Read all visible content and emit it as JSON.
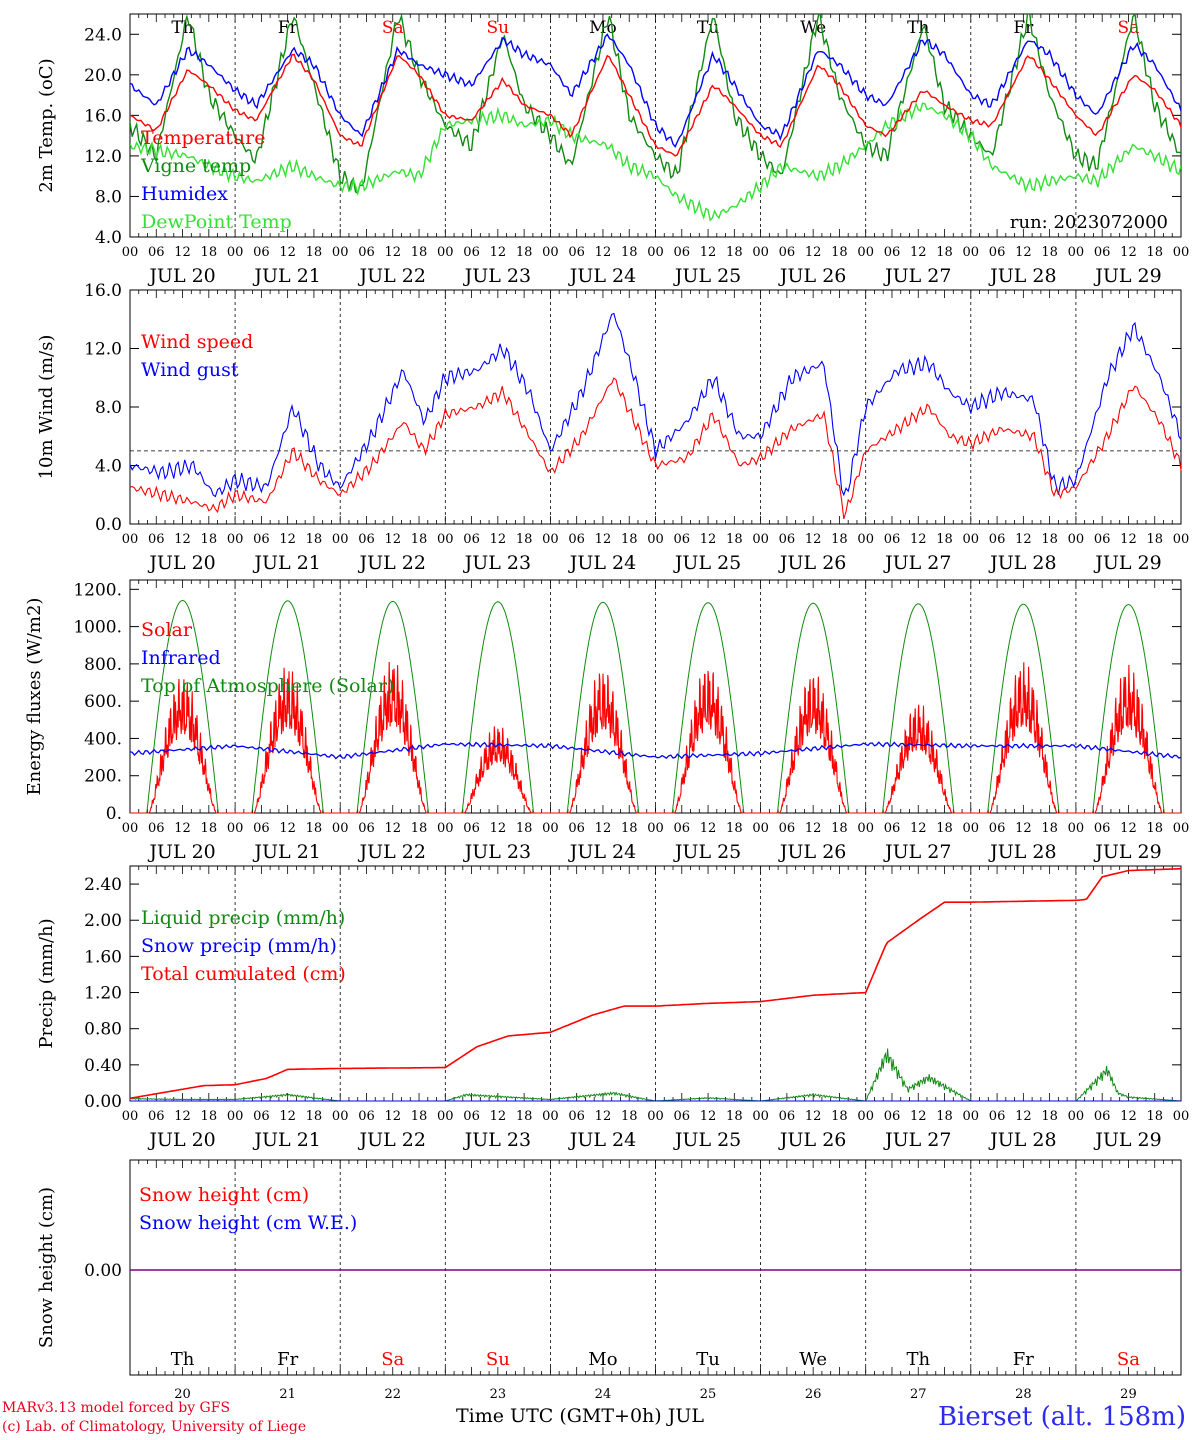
{
  "colors": {
    "red": "#ff0000",
    "green": "#118a11",
    "blue": "#0000ff",
    "lightgreen": "#33e033",
    "black": "#000000",
    "purple": "#7f007f"
  },
  "x_axis": {
    "hour_ticks": [
      "00",
      "06",
      "12",
      "18"
    ],
    "final_tick": "00",
    "dates": [
      "JUL 20",
      "JUL 21",
      "JUL 22",
      "JUL 23",
      "JUL 24",
      "JUL 25",
      "JUL 26",
      "JUL 27",
      "JUL 28",
      "JUL 29"
    ],
    "weekdays": [
      "Th",
      "Fr",
      "Sa",
      "Su",
      "Mo",
      "Tu",
      "We",
      "Th",
      "Fr",
      "Sa"
    ],
    "weekend_flags": [
      false,
      false,
      true,
      true,
      false,
      false,
      false,
      false,
      false,
      true
    ],
    "day_numbers": [
      "20",
      "21",
      "22",
      "23",
      "24",
      "25",
      "26",
      "27",
      "28",
      "29"
    ],
    "title": "Time UTC (GMT+0h) JUL"
  },
  "footer": {
    "model_credit": "MARv3.13 model forced by GFS",
    "lab_credit": "(c) Lab. of Climatology, University of Liege",
    "station": "Bierset (alt. 158m)"
  },
  "chart_data": [
    {
      "type": "line",
      "ylabel": "2m Temp. (oC)",
      "ylim": [
        4,
        26
      ],
      "yticks": [
        "4.0",
        "8.0",
        "12.0",
        "16.0",
        "20.0",
        "24.0"
      ],
      "annotation": "run: 2023072000",
      "x_units": "days since JUL 20 00 UTC",
      "series": [
        {
          "name": "Temperature",
          "color": "red",
          "x": [
            0,
            0.25,
            0.55,
            0.75,
            1,
            1.2,
            1.55,
            1.75,
            2,
            2.2,
            2.55,
            2.75,
            3,
            3.25,
            3.55,
            3.75,
            4,
            4.2,
            4.55,
            4.75,
            5,
            5.2,
            5.55,
            5.75,
            6,
            6.2,
            6.55,
            6.75,
            7,
            7.2,
            7.55,
            7.75,
            8,
            8.2,
            8.55,
            8.75,
            9,
            9.2,
            9.55,
            9.75,
            10
          ],
          "y": [
            16,
            14.5,
            20.5,
            19,
            16.5,
            15.5,
            22,
            19.5,
            14,
            13,
            22,
            20,
            16,
            15.5,
            19.5,
            17,
            16,
            14,
            22,
            18,
            13,
            12,
            19,
            17,
            14,
            13,
            21,
            19,
            15,
            14,
            18.5,
            17,
            15.5,
            15,
            22,
            19.5,
            16,
            14,
            20,
            18.5,
            15
          ]
        },
        {
          "name": "Vigne temp",
          "color": "green",
          "x": [
            0,
            0.25,
            0.55,
            0.75,
            1,
            1.2,
            1.55,
            1.75,
            2,
            2.2,
            2.55,
            2.75,
            3,
            3.25,
            3.55,
            3.75,
            4,
            4.2,
            4.55,
            4.75,
            5,
            5.2,
            5.55,
            5.75,
            6,
            6.2,
            6.55,
            6.75,
            7,
            7.2,
            7.55,
            7.75,
            8,
            8.2,
            8.55,
            8.75,
            9,
            9.2,
            9.55,
            9.75,
            10
          ],
          "y": [
            15,
            12,
            26,
            18,
            14,
            11.5,
            26,
            19,
            10,
            8.5,
            26,
            20,
            15,
            13,
            24,
            17,
            14,
            11,
            26,
            16,
            12,
            10,
            26,
            16,
            12,
            10,
            26,
            18,
            13,
            12,
            25,
            17,
            14,
            12,
            26,
            18,
            12,
            11,
            26,
            17,
            12
          ]
        },
        {
          "name": "Humidex",
          "color": "blue",
          "x": [
            0,
            0.25,
            0.55,
            0.75,
            1,
            1.2,
            1.55,
            1.75,
            2,
            2.2,
            2.55,
            2.75,
            3,
            3.25,
            3.55,
            3.75,
            4,
            4.2,
            4.55,
            4.75,
            5,
            5.2,
            5.55,
            5.75,
            6,
            6.2,
            6.55,
            6.75,
            7,
            7.2,
            7.55,
            7.75,
            8,
            8.2,
            8.55,
            8.75,
            9,
            9.2,
            9.55,
            9.75,
            10
          ],
          "y": [
            19,
            17,
            22.5,
            21,
            18.5,
            17,
            22.5,
            21,
            16,
            14,
            22.5,
            21,
            20,
            19,
            23.5,
            22,
            21,
            18,
            24,
            21,
            15,
            13,
            22,
            19,
            15,
            14,
            22.5,
            21,
            18,
            17,
            23.5,
            22,
            18,
            17,
            23.5,
            22,
            18,
            16,
            23,
            21,
            16.5
          ]
        },
        {
          "name": "DewPoint Temp",
          "color": "lightgreen",
          "x": [
            0,
            0.25,
            0.55,
            0.75,
            1,
            1.2,
            1.55,
            1.75,
            2,
            2.2,
            2.55,
            2.75,
            3,
            3.25,
            3.55,
            3.75,
            4,
            4.2,
            4.55,
            4.75,
            5,
            5.2,
            5.55,
            5.75,
            6,
            6.2,
            6.55,
            6.75,
            7,
            7.2,
            7.55,
            7.75,
            8,
            8.2,
            8.55,
            8.75,
            9,
            9.2,
            9.55,
            9.75,
            10
          ],
          "y": [
            13,
            12.5,
            12,
            11,
            10,
            9.5,
            11,
            10,
            9,
            9,
            10.5,
            10,
            15,
            15.5,
            16,
            15,
            15.5,
            14,
            13,
            11,
            10,
            8,
            6,
            7,
            9,
            11,
            10,
            11,
            13,
            15,
            17,
            16,
            14,
            11,
            9,
            9.5,
            10,
            9.5,
            13,
            12,
            10.5
          ]
        }
      ]
    },
    {
      "type": "line",
      "ylabel": "10m Wind (m/s)",
      "ylim": [
        0,
        16
      ],
      "yticks": [
        "0.0",
        "4.0",
        "8.0",
        "12.0",
        "16.0"
      ],
      "reference_line": 5,
      "x_units": "days since JUL 20 00 UTC",
      "series": [
        {
          "name": "Wind speed",
          "color": "red",
          "x": [
            0,
            0.3,
            0.6,
            0.8,
            1,
            1.3,
            1.55,
            1.8,
            2,
            2.3,
            2.6,
            2.8,
            3,
            3.3,
            3.55,
            3.8,
            4,
            4.3,
            4.6,
            4.8,
            5,
            5.3,
            5.55,
            5.8,
            6,
            6.3,
            6.6,
            6.8,
            7,
            7.3,
            7.6,
            7.8,
            8,
            8.3,
            8.6,
            8.8,
            9,
            9.3,
            9.55,
            9.8,
            10
          ],
          "y": [
            2.5,
            2,
            1.5,
            1,
            2,
            1.5,
            5,
            3,
            2,
            4,
            7,
            5,
            7.5,
            8,
            9,
            6,
            3.5,
            6,
            10,
            7,
            4,
            4.5,
            7.5,
            4,
            4.5,
            6.5,
            7.5,
            0.5,
            5,
            6.5,
            8,
            6,
            5.5,
            6.5,
            6,
            2,
            2.5,
            6,
            9.5,
            7,
            4
          ]
        },
        {
          "name": "Wind gust",
          "color": "blue",
          "x": [
            0,
            0.3,
            0.6,
            0.8,
            1,
            1.3,
            1.55,
            1.8,
            2,
            2.3,
            2.6,
            2.8,
            3,
            3.3,
            3.55,
            3.8,
            4,
            4.3,
            4.6,
            4.8,
            5,
            5.3,
            5.55,
            5.8,
            6,
            6.3,
            6.6,
            6.8,
            7,
            7.3,
            7.6,
            7.8,
            8,
            8.3,
            8.6,
            8.8,
            9,
            9.3,
            9.55,
            9.8,
            10
          ],
          "y": [
            4,
            3.5,
            4,
            2,
            3,
            2.5,
            8,
            4,
            2.5,
            6,
            10.5,
            7,
            10,
            10.5,
            12,
            9,
            5,
            9,
            14.5,
            10,
            5,
            7,
            10,
            6,
            6,
            10,
            11,
            1.5,
            8,
            10.5,
            11,
            9,
            8,
            9,
            8.5,
            2.5,
            3,
            10,
            13.5,
            10,
            6
          ]
        }
      ]
    },
    {
      "type": "line",
      "ylabel": "Energy fluxes (W/m2)",
      "ylim": [
        0,
        1250
      ],
      "yticks": [
        "0.",
        "200.",
        "400.",
        "600.",
        "800.",
        "1000.",
        "1200."
      ],
      "x_units": "days since JUL 20 00 UTC",
      "daily_peaks": {
        "Top of Atmosphere (Solar)": [
          1140,
          1138,
          1135,
          1133,
          1130,
          1128,
          1125,
          1122,
          1120,
          1118
        ],
        "Solar": [
          750,
          800,
          830,
          480,
          790,
          810,
          770,
          600,
          820,
          800
        ]
      },
      "series": [
        {
          "name": "Solar",
          "color": "red"
        },
        {
          "name": "Infrared",
          "color": "blue",
          "x": [
            0,
            1,
            2,
            3,
            4,
            5,
            6,
            7,
            8,
            9,
            10
          ],
          "y": [
            320,
            360,
            300,
            370,
            360,
            300,
            320,
            370,
            360,
            360,
            300
          ]
        },
        {
          "name": "Top of Atmosphere (Solar)",
          "color": "green"
        }
      ]
    },
    {
      "type": "line",
      "ylabel": "Precip (mm/h)",
      "ylim": [
        0,
        2.6
      ],
      "yticks": [
        "0.00",
        "0.40",
        "0.80",
        "1.20",
        "1.60",
        "2.00",
        "2.40"
      ],
      "x_units": "days since JUL 20 00 UTC",
      "series": [
        {
          "name": "Liquid precip (mm/h)",
          "color": "green",
          "x": [
            0,
            0.5,
            1,
            1.5,
            2,
            3,
            3.2,
            4,
            4.6,
            5,
            5.5,
            6,
            6.5,
            7,
            7.2,
            7.4,
            7.6,
            8,
            9,
            9.3,
            9.4,
            9.5,
            10
          ],
          "y": [
            0.03,
            0.02,
            0.02,
            0.08,
            0,
            0,
            0.08,
            0.02,
            0.1,
            0,
            0.04,
            0,
            0.08,
            0,
            0.6,
            0.15,
            0.3,
            0,
            0,
            0.4,
            0.1,
            0.05,
            0
          ]
        },
        {
          "name": "Snow precip (mm/h)",
          "color": "blue",
          "x": [
            0,
            10
          ],
          "y": [
            0,
            0
          ]
        },
        {
          "name": "Total cumulated (cm)",
          "color": "red",
          "x": [
            0,
            0.7,
            1,
            1.3,
            1.5,
            2,
            3,
            3.3,
            3.6,
            4,
            4.4,
            4.7,
            5,
            5.5,
            6,
            6.5,
            7,
            7.2,
            7.5,
            7.75,
            8,
            9,
            9.1,
            9.25,
            9.5,
            10
          ],
          "y": [
            0.03,
            0.17,
            0.18,
            0.25,
            0.35,
            0.36,
            0.37,
            0.6,
            0.72,
            0.76,
            0.95,
            1.05,
            1.05,
            1.08,
            1.1,
            1.17,
            1.2,
            1.75,
            2.0,
            2.2,
            2.2,
            2.22,
            2.23,
            2.48,
            2.55,
            2.57
          ]
        }
      ]
    },
    {
      "type": "line",
      "ylabel": "Snow height (cm)",
      "yticks": [
        "0.00"
      ],
      "x_units": "days since JUL 20 00 UTC",
      "series": [
        {
          "name": "Snow height (cm)",
          "color": "red",
          "x": [
            0,
            10
          ],
          "y": [
            0,
            0
          ]
        },
        {
          "name": "Snow height (cm W.E.)",
          "color": "blue",
          "x": [
            0,
            10
          ],
          "y": [
            0,
            0
          ]
        }
      ]
    }
  ]
}
